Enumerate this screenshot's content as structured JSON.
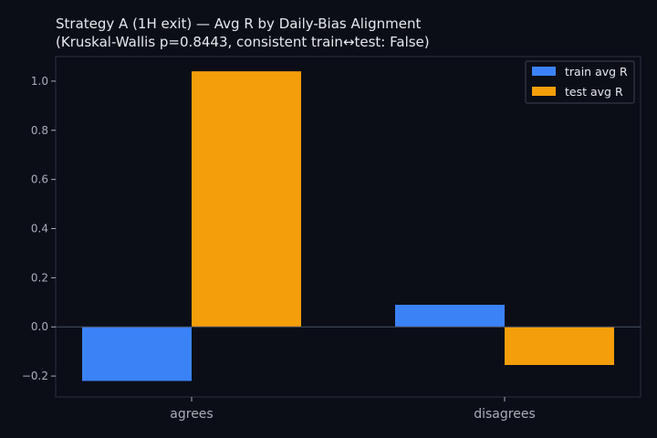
{
  "chart_data": {
    "type": "bar",
    "title_line1": "Strategy A (1H exit) — Avg R by Daily-Bias Alignment",
    "title_line2": "(Kruskal-Wallis p=0.8443, consistent train↔test: False)",
    "xlabel": "",
    "ylabel": "",
    "categories": [
      "agrees",
      "disagrees"
    ],
    "series": [
      {
        "name": "train avg R",
        "color": "#3b82f6",
        "values": [
          -0.22,
          0.09
        ]
      },
      {
        "name": "test avg R",
        "color": "#f59e0b",
        "values": [
          1.04,
          -0.155
        ]
      }
    ],
    "ylim": [
      -0.285,
      1.1
    ],
    "yticks": [
      -0.2,
      0.0,
      0.2,
      0.4,
      0.6,
      0.8,
      1.0
    ],
    "ytick_labels": [
      "−0.2",
      "0.0",
      "0.2",
      "0.4",
      "0.6",
      "0.8",
      "1.0"
    ],
    "legend_position": "top-right",
    "grid": false,
    "zero_line": true
  },
  "colors": {
    "background": "#0b0e17",
    "axes_frame": "#2b3040",
    "text": "#e6e8ee",
    "tick_text": "#a9adb8"
  }
}
